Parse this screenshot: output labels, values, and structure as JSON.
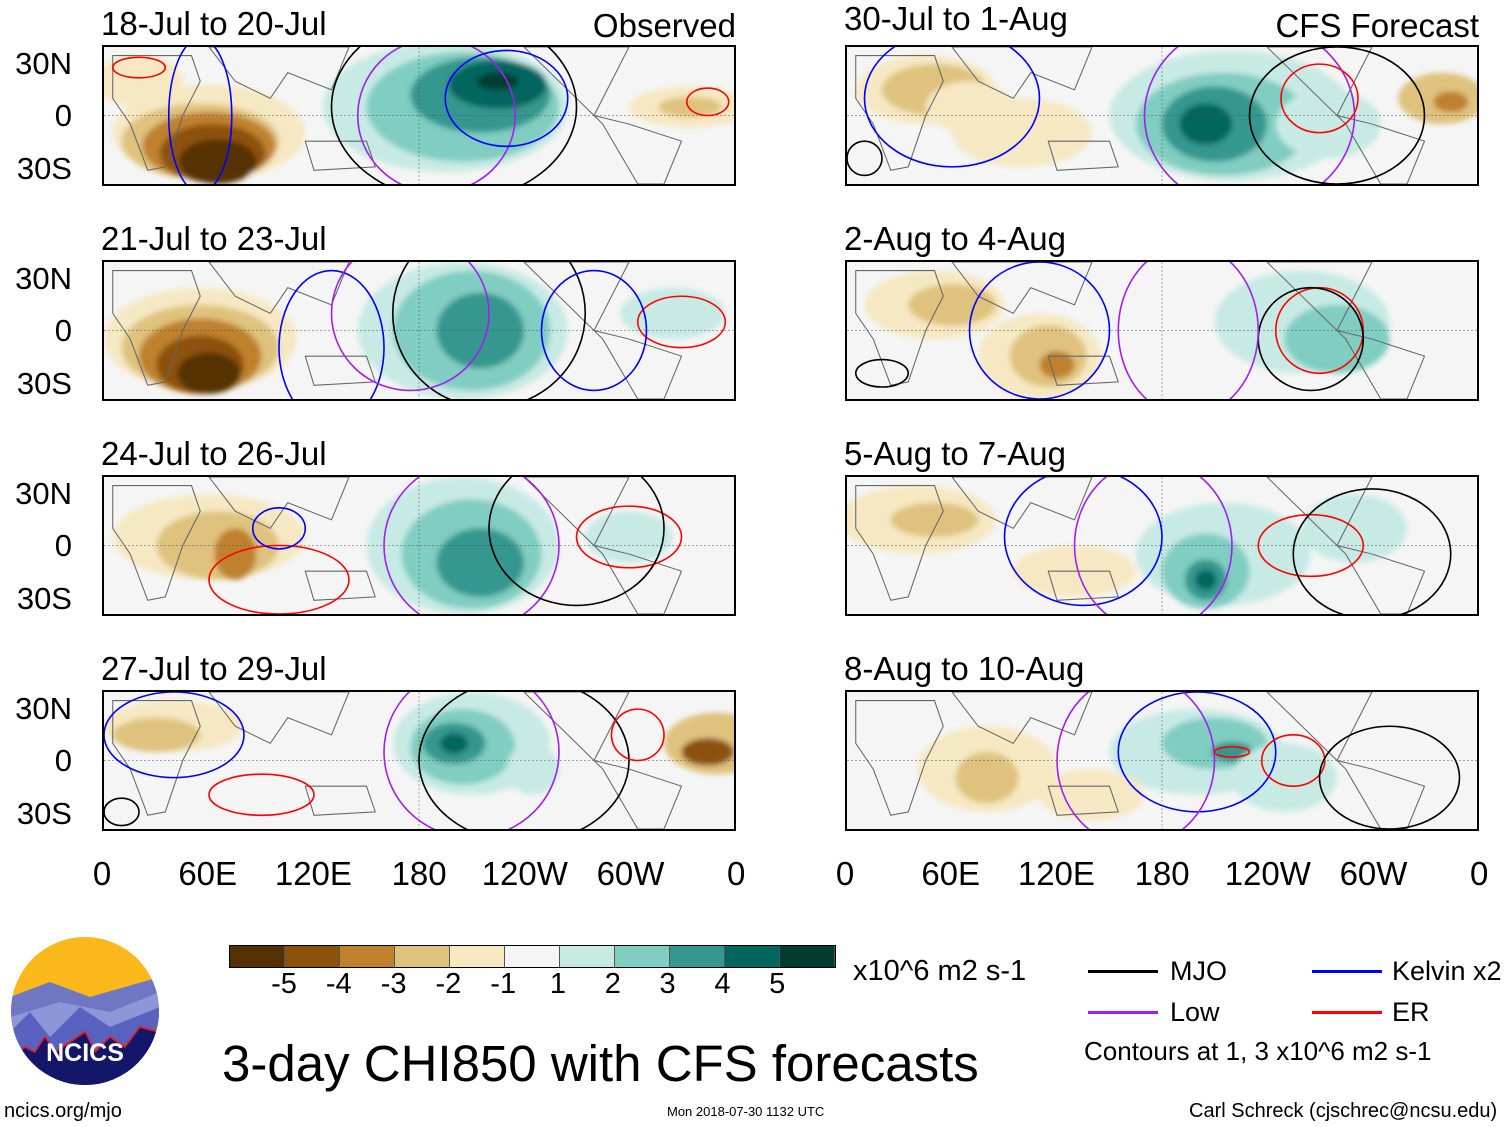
{
  "panels_left": [
    {
      "title": "18-Jul to 20-Jul",
      "tag": "Observed"
    },
    {
      "title": "21-Jul to 23-Jul"
    },
    {
      "title": "24-Jul to 26-Jul"
    },
    {
      "title": "27-Jul to 29-Jul"
    }
  ],
  "panels_right": [
    {
      "title": "30-Jul to 1-Aug",
      "tag": "CFS Forecast"
    },
    {
      "title": "2-Aug to 4-Aug"
    },
    {
      "title": "5-Aug to 7-Aug"
    },
    {
      "title": "8-Aug to 10-Aug"
    }
  ],
  "lat_labels": [
    "30N",
    "0",
    "30S"
  ],
  "lon_labels": [
    "0",
    "60E",
    "120E",
    "180",
    "120W",
    "60W",
    "0"
  ],
  "colorbar": {
    "labels": [
      "-5",
      "-4",
      "-3",
      "-2",
      "-1",
      "1",
      "2",
      "3",
      "4",
      "5"
    ],
    "colors": [
      "#543005",
      "#8c510a",
      "#bf812d",
      "#dfc27d",
      "#f6e8c3",
      "#f5f5f5",
      "#c7eae5",
      "#80cdc1",
      "#35978f",
      "#01665e",
      "#003c30"
    ],
    "units": "x10^6 m2 s-1"
  },
  "legend": {
    "items": [
      {
        "label": "MJO",
        "color": "#000000"
      },
      {
        "label": "Kelvin x2",
        "color": "#0000ff"
      },
      {
        "label": "Low",
        "color": "#a020f0"
      },
      {
        "label": "ER",
        "color": "#ff0000"
      }
    ],
    "contours_note": "Contours at 1, 3 x10^6 m2 s-1"
  },
  "title": "3-day CHI850 with CFS forecasts",
  "logo_text": "NCICS",
  "footer": {
    "url": "ncics.org/mjo",
    "timestamp": "Mon 2018-07-30 1132 UTC",
    "author": "Carl Schreck (cjschrec@ncsu.edu)"
  }
}
